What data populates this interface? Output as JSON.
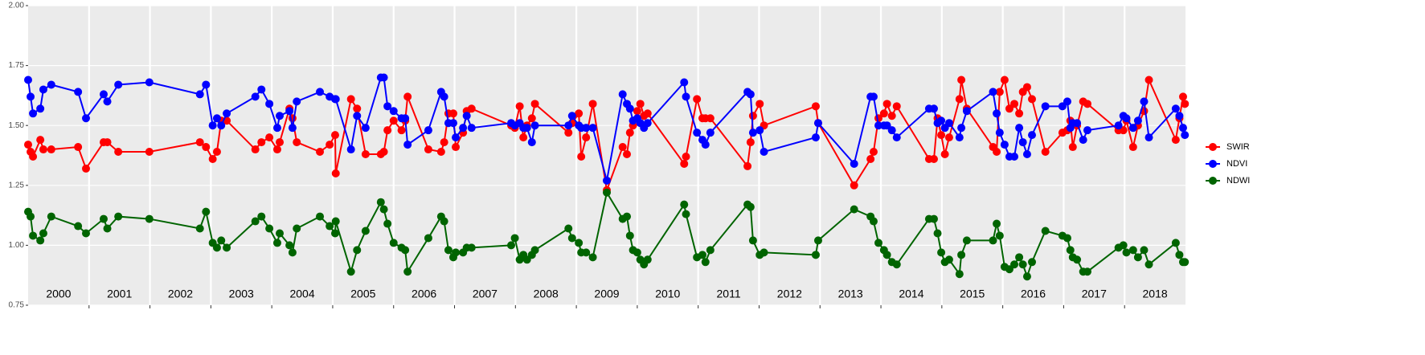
{
  "chart_data": {
    "type": "line",
    "x": [
      2000.0,
      2000.04,
      2000.08,
      2000.2,
      2000.25,
      2000.38,
      2000.82,
      2000.95,
      2001.24,
      2001.3,
      2001.48,
      2001.99,
      2002.82,
      2002.92,
      2003.03,
      2003.1,
      2003.17,
      2003.26,
      2003.73,
      2003.83,
      2003.96,
      2004.09,
      2004.13,
      2004.29,
      2004.34,
      2004.41,
      2004.79,
      2004.95,
      2005.04,
      2005.05,
      2005.3,
      2005.4,
      2005.54,
      2005.79,
      2005.84,
      2005.9,
      2006.0,
      2006.13,
      2006.19,
      2006.23,
      2006.57,
      2006.78,
      2006.83,
      2006.9,
      2006.98,
      2007.02,
      2007.14,
      2007.2,
      2007.28,
      2007.93,
      2007.99,
      2008.07,
      2008.13,
      2008.19,
      2008.27,
      2008.32,
      2008.87,
      2008.93,
      2009.04,
      2009.08,
      2009.16,
      2009.27,
      2009.5,
      2009.76,
      2009.83,
      2009.88,
      2009.93,
      2010.0,
      2010.05,
      2010.11,
      2010.17,
      2010.77,
      2010.8,
      2010.98,
      2011.07,
      2011.12,
      2011.2,
      2011.81,
      2011.86,
      2011.9,
      2012.01,
      2012.08,
      2012.93,
      2012.97,
      2013.56,
      2013.83,
      2013.88,
      2013.96,
      2014.05,
      2014.1,
      2014.18,
      2014.26,
      2014.79,
      2014.87,
      2014.93,
      2014.99,
      2015.05,
      2015.12,
      2015.29,
      2015.32,
      2015.41,
      2015.84,
      2015.9,
      2015.95,
      2016.03,
      2016.11,
      2016.19,
      2016.27,
      2016.33,
      2016.4,
      2016.48,
      2016.7,
      2016.98,
      2017.06,
      2017.11,
      2017.15,
      2017.22,
      2017.32,
      2017.39,
      2017.9,
      2017.98,
      2018.03,
      2018.14,
      2018.22,
      2018.32,
      2018.4,
      2018.84,
      2018.9,
      2018.96,
      2018.99
    ],
    "series": [
      {
        "name": "SWIR",
        "color": "#ff0000",
        "values": [
          1.42,
          1.39,
          1.37,
          1.44,
          1.4,
          1.4,
          1.41,
          1.32,
          1.43,
          1.43,
          1.39,
          1.39,
          1.43,
          1.41,
          1.36,
          1.39,
          1.52,
          1.52,
          1.4,
          1.43,
          1.45,
          1.4,
          1.43,
          1.57,
          1.53,
          1.43,
          1.39,
          1.42,
          1.46,
          1.3,
          1.61,
          1.57,
          1.38,
          1.38,
          1.39,
          1.48,
          1.52,
          1.48,
          1.52,
          1.62,
          1.4,
          1.39,
          1.43,
          1.55,
          1.55,
          1.41,
          1.47,
          1.56,
          1.57,
          1.5,
          1.49,
          1.58,
          1.45,
          1.5,
          1.53,
          1.59,
          1.47,
          1.51,
          1.55,
          1.37,
          1.45,
          1.59,
          1.23,
          1.41,
          1.38,
          1.47,
          1.5,
          1.56,
          1.59,
          1.54,
          1.55,
          1.34,
          1.37,
          1.61,
          1.53,
          1.53,
          1.53,
          1.33,
          1.43,
          1.54,
          1.59,
          1.5,
          1.58,
          1.51,
          1.25,
          1.36,
          1.39,
          1.53,
          1.55,
          1.59,
          1.54,
          1.58,
          1.36,
          1.36,
          1.53,
          1.46,
          1.38,
          1.45,
          1.61,
          1.69,
          1.57,
          1.41,
          1.39,
          1.64,
          1.69,
          1.57,
          1.59,
          1.55,
          1.64,
          1.66,
          1.61,
          1.39,
          1.47,
          1.48,
          1.52,
          1.41,
          1.5,
          1.6,
          1.59,
          1.48,
          1.48,
          1.52,
          1.41,
          1.5,
          1.56,
          1.69,
          1.44,
          1.53,
          1.62,
          1.59
        ]
      },
      {
        "name": "NDVI",
        "color": "#0000ff",
        "values": [
          1.69,
          1.62,
          1.55,
          1.57,
          1.65,
          1.67,
          1.64,
          1.53,
          1.63,
          1.6,
          1.67,
          1.68,
          1.63,
          1.67,
          1.5,
          1.53,
          1.5,
          1.55,
          1.62,
          1.65,
          1.59,
          1.49,
          1.54,
          1.56,
          1.49,
          1.6,
          1.64,
          1.62,
          1.61,
          1.61,
          1.4,
          1.54,
          1.49,
          1.7,
          1.7,
          1.58,
          1.56,
          1.53,
          1.53,
          1.42,
          1.48,
          1.64,
          1.62,
          1.51,
          1.51,
          1.45,
          1.49,
          1.54,
          1.49,
          1.51,
          1.5,
          1.51,
          1.49,
          1.49,
          1.43,
          1.5,
          1.5,
          1.54,
          1.5,
          1.49,
          1.49,
          1.49,
          1.27,
          1.63,
          1.59,
          1.57,
          1.52,
          1.53,
          1.51,
          1.49,
          1.51,
          1.68,
          1.62,
          1.47,
          1.44,
          1.42,
          1.47,
          1.64,
          1.63,
          1.47,
          1.48,
          1.39,
          1.45,
          1.51,
          1.34,
          1.62,
          1.62,
          1.5,
          1.5,
          1.5,
          1.48,
          1.45,
          1.57,
          1.57,
          1.51,
          1.52,
          1.49,
          1.51,
          1.45,
          1.49,
          1.56,
          1.64,
          1.55,
          1.47,
          1.42,
          1.37,
          1.37,
          1.49,
          1.43,
          1.38,
          1.46,
          1.58,
          1.58,
          1.6,
          1.49,
          1.51,
          1.51,
          1.44,
          1.48,
          1.5,
          1.54,
          1.53,
          1.49,
          1.52,
          1.6,
          1.45,
          1.57,
          1.54,
          1.49,
          1.46
        ]
      },
      {
        "name": "NDWI",
        "color": "#006400",
        "values": [
          1.14,
          1.12,
          1.04,
          1.02,
          1.05,
          1.12,
          1.08,
          1.05,
          1.11,
          1.07,
          1.12,
          1.11,
          1.07,
          1.14,
          1.01,
          0.99,
          1.02,
          0.99,
          1.1,
          1.12,
          1.07,
          1.01,
          1.05,
          1.0,
          0.97,
          1.07,
          1.12,
          1.08,
          1.05,
          1.1,
          0.89,
          0.98,
          1.06,
          1.18,
          1.15,
          1.09,
          1.01,
          0.99,
          0.98,
          0.89,
          1.03,
          1.12,
          1.1,
          0.98,
          0.95,
          0.97,
          0.97,
          0.99,
          0.99,
          1.0,
          1.03,
          0.94,
          0.96,
          0.94,
          0.96,
          0.98,
          1.07,
          1.03,
          1.01,
          0.97,
          0.97,
          0.95,
          1.22,
          1.11,
          1.12,
          1.04,
          0.98,
          0.97,
          0.94,
          0.92,
          0.94,
          1.17,
          1.13,
          0.95,
          0.96,
          0.93,
          0.98,
          1.17,
          1.16,
          1.02,
          0.96,
          0.97,
          0.96,
          1.02,
          1.15,
          1.12,
          1.1,
          1.01,
          0.98,
          0.96,
          0.93,
          0.92,
          1.11,
          1.11,
          1.05,
          0.97,
          0.93,
          0.94,
          0.88,
          0.96,
          1.02,
          1.02,
          1.09,
          1.04,
          0.91,
          0.9,
          0.92,
          0.95,
          0.92,
          0.87,
          0.93,
          1.06,
          1.04,
          1.03,
          0.98,
          0.95,
          0.94,
          0.89,
          0.89,
          0.99,
          1.0,
          0.97,
          0.98,
          0.95,
          0.98,
          0.92,
          1.01,
          0.96,
          0.93,
          0.93
        ]
      }
    ],
    "xlim": [
      2000,
      2019
    ],
    "xticks": [
      2001,
      2002,
      2003,
      2004,
      2005,
      2006,
      2007,
      2008,
      2009,
      2010,
      2011,
      2012,
      2013,
      2014,
      2015,
      2016,
      2017,
      2018
    ],
    "year_labels": [
      {
        "value": 2000.5,
        "label": "2000"
      },
      {
        "value": 2001.5,
        "label": "2001"
      },
      {
        "value": 2002.5,
        "label": "2002"
      },
      {
        "value": 2003.5,
        "label": "2003"
      },
      {
        "value": 2004.5,
        "label": "2004"
      },
      {
        "value": 2005.5,
        "label": "2005"
      },
      {
        "value": 2006.5,
        "label": "2006"
      },
      {
        "value": 2007.5,
        "label": "2007"
      },
      {
        "value": 2008.5,
        "label": "2008"
      },
      {
        "value": 2009.5,
        "label": "2009"
      },
      {
        "value": 2010.5,
        "label": "2010"
      },
      {
        "value": 2011.5,
        "label": "2011"
      },
      {
        "value": 2012.5,
        "label": "2012"
      },
      {
        "value": 2013.5,
        "label": "2013"
      },
      {
        "value": 2014.5,
        "label": "2014"
      },
      {
        "value": 2015.5,
        "label": "2015"
      },
      {
        "value": 2016.5,
        "label": "2016"
      },
      {
        "value": 2017.5,
        "label": "2017"
      },
      {
        "value": 2018.5,
        "label": "2018"
      }
    ],
    "ylim": [
      0.75,
      2.0
    ],
    "yticks": [
      {
        "value": 0.75,
        "label": "0.75"
      },
      {
        "value": 1.0,
        "label": "1.00"
      },
      {
        "value": 1.25,
        "label": "1.25"
      },
      {
        "value": 1.5,
        "label": "1.50"
      },
      {
        "value": 1.75,
        "label": "1.75"
      },
      {
        "value": 2.0,
        "label": "2.00"
      }
    ],
    "grid": true,
    "legend": "right"
  }
}
